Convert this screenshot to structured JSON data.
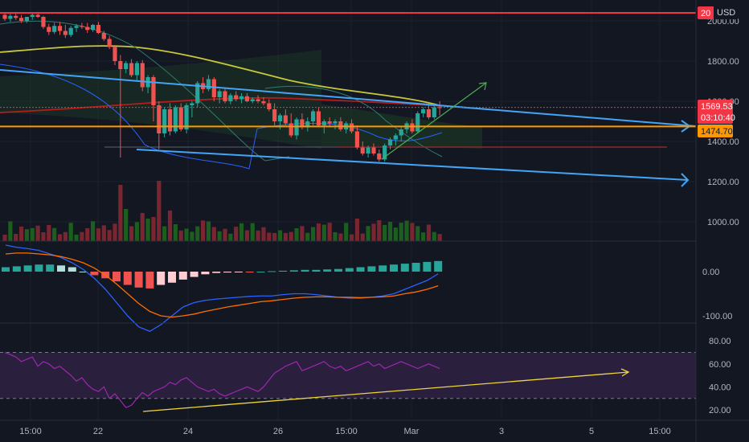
{
  "chart_data": {
    "type": "candlestick",
    "currency": "USD",
    "price_axis_ticks": [
      "2000.00",
      "1800.00",
      "1600.00",
      "1400.00",
      "1200.00",
      "1000.00"
    ],
    "macd_axis_ticks": [
      "0.00",
      "-100.00"
    ],
    "rsi_axis_ticks": [
      "80.00",
      "60.00",
      "40.00",
      "20.00"
    ],
    "x_ticks": [
      "15:00",
      "22",
      "24",
      "26",
      "15:00",
      "Mar",
      "3",
      "5",
      "15:00"
    ],
    "price_tags": [
      {
        "label": "20",
        "value": 2040,
        "color": "#f23645"
      },
      {
        "label": "1569.53",
        "value": 1569.53,
        "color": "#f23645"
      },
      {
        "label": "03:10:40",
        "value": 1535,
        "color": "#f23645"
      },
      {
        "label": "1474.70",
        "value": 1474.7,
        "color": "#ff9800"
      }
    ],
    "horizontal_levels": [
      {
        "value": 2040,
        "color": "#f23645"
      },
      {
        "value": 1474.7,
        "color": "#ff9800"
      }
    ],
    "candles": [
      [
        2030,
        2040,
        2000,
        2010
      ],
      [
        2010,
        2035,
        1995,
        2025
      ],
      [
        2025,
        2045,
        2005,
        2015
      ],
      [
        2015,
        2030,
        1990,
        2000
      ],
      [
        2000,
        2020,
        1990,
        2020
      ],
      [
        2020,
        2040,
        2005,
        2030
      ],
      [
        2030,
        2045,
        2015,
        2020
      ],
      [
        2020,
        2025,
        1960,
        1970
      ],
      [
        1970,
        1985,
        1930,
        1945
      ],
      [
        1945,
        1990,
        1935,
        1975
      ],
      [
        1975,
        1995,
        1930,
        1950
      ],
      [
        1950,
        1980,
        1915,
        1930
      ],
      [
        1930,
        1975,
        1920,
        1965
      ],
      [
        1965,
        1985,
        1945,
        1975
      ],
      [
        1975,
        1990,
        1960,
        1970
      ],
      [
        1970,
        1990,
        1940,
        1955
      ],
      [
        1955,
        1985,
        1945,
        1980
      ],
      [
        1980,
        1995,
        1935,
        1940
      ],
      [
        1940,
        1950,
        1900,
        1910
      ],
      [
        1910,
        1925,
        1860,
        1870
      ],
      [
        1870,
        1880,
        1780,
        1800
      ],
      [
        1800,
        1830,
        1320,
        1760
      ],
      [
        1760,
        1800,
        1740,
        1790
      ],
      [
        1790,
        1810,
        1720,
        1730
      ],
      [
        1730,
        1800,
        1700,
        1790
      ],
      [
        1790,
        1805,
        1650,
        1670
      ],
      [
        1670,
        1730,
        1640,
        1720
      ],
      [
        1720,
        1730,
        1500,
        1580
      ],
      [
        1580,
        1600,
        1360,
        1440
      ],
      [
        1440,
        1570,
        1420,
        1560
      ],
      [
        1560,
        1590,
        1430,
        1450
      ],
      [
        1450,
        1580,
        1440,
        1570
      ],
      [
        1570,
        1590,
        1450,
        1460
      ],
      [
        1460,
        1590,
        1440,
        1580
      ],
      [
        1580,
        1600,
        1520,
        1590
      ],
      [
        1590,
        1700,
        1570,
        1690
      ],
      [
        1690,
        1720,
        1640,
        1660
      ],
      [
        1660,
        1730,
        1650,
        1710
      ],
      [
        1710,
        1720,
        1600,
        1620
      ],
      [
        1620,
        1660,
        1590,
        1650
      ],
      [
        1650,
        1670,
        1590,
        1600
      ],
      [
        1600,
        1640,
        1585,
        1630
      ],
      [
        1630,
        1650,
        1600,
        1610
      ],
      [
        1610,
        1640,
        1590,
        1625
      ],
      [
        1625,
        1640,
        1595,
        1600
      ],
      [
        1600,
        1620,
        1590,
        1610
      ],
      [
        1610,
        1630,
        1590,
        1600
      ],
      [
        1600,
        1620,
        1580,
        1590
      ],
      [
        1590,
        1610,
        1550,
        1560
      ],
      [
        1560,
        1590,
        1480,
        1500
      ],
      [
        1500,
        1540,
        1460,
        1530
      ],
      [
        1530,
        1560,
        1480,
        1490
      ],
      [
        1490,
        1540,
        1420,
        1430
      ],
      [
        1430,
        1520,
        1410,
        1510
      ],
      [
        1510,
        1540,
        1460,
        1470
      ],
      [
        1470,
        1520,
        1450,
        1500
      ],
      [
        1500,
        1560,
        1480,
        1550
      ],
      [
        1550,
        1570,
        1470,
        1480
      ],
      [
        1480,
        1510,
        1440,
        1500
      ],
      [
        1500,
        1520,
        1470,
        1490
      ],
      [
        1490,
        1510,
        1460,
        1500
      ],
      [
        1500,
        1520,
        1450,
        1460
      ],
      [
        1460,
        1500,
        1440,
        1490
      ],
      [
        1490,
        1510,
        1440,
        1450
      ],
      [
        1450,
        1480,
        1360,
        1370
      ],
      [
        1370,
        1400,
        1330,
        1340
      ],
      [
        1340,
        1380,
        1320,
        1370
      ],
      [
        1370,
        1390,
        1330,
        1340
      ],
      [
        1340,
        1360,
        1300,
        1310
      ],
      [
        1310,
        1390,
        1300,
        1380
      ],
      [
        1380,
        1420,
        1360,
        1410
      ],
      [
        1410,
        1440,
        1380,
        1430
      ],
      [
        1430,
        1470,
        1400,
        1460
      ],
      [
        1460,
        1500,
        1440,
        1490
      ],
      [
        1490,
        1510,
        1440,
        1450
      ],
      [
        1450,
        1550,
        1440,
        1540
      ],
      [
        1540,
        1570,
        1520,
        1560
      ],
      [
        1560,
        1590,
        1510,
        1520
      ],
      [
        1520,
        1580,
        1510,
        1570
      ],
      [
        1570,
        1600,
        1530,
        1569.53
      ]
    ],
    "volume_colors_note": "green=up, red=down",
    "macd": {
      "macd_line": [
        60,
        55,
        52,
        48,
        40,
        32,
        20,
        5,
        -15,
        -40,
        -70,
        -100,
        -125,
        -135,
        -120,
        -100,
        -80,
        -70,
        -65,
        -62,
        -60,
        -58,
        -56,
        -55,
        -55,
        -52,
        -50,
        -50,
        -52,
        -55,
        -58,
        -60,
        -60,
        -58,
        -55,
        -50,
        -40,
        -30,
        -20,
        -5
      ],
      "signal_line": [
        40,
        42,
        42,
        40,
        38,
        34,
        28,
        20,
        8,
        -8,
        -28,
        -50,
        -72,
        -90,
        -100,
        -103,
        -100,
        -96,
        -90,
        -85,
        -80,
        -76,
        -72,
        -68,
        -66,
        -63,
        -60,
        -58,
        -57,
        -57,
        -58,
        -58,
        -59,
        -58,
        -57,
        -55,
        -50,
        -46,
        -40,
        -32
      ],
      "histogram": [
        10,
        12,
        14,
        16,
        16,
        14,
        10,
        0,
        -8,
        -15,
        -22,
        -30,
        -36,
        -38,
        -30,
        -25,
        -18,
        -12,
        -6,
        -3,
        -2,
        -1,
        -1,
        0,
        1,
        2,
        3,
        4,
        4,
        5,
        6,
        8,
        10,
        12,
        14,
        16,
        18,
        20,
        22,
        24
      ]
    },
    "rsi": {
      "values": [
        70,
        68,
        66,
        62,
        64,
        66,
        58,
        62,
        60,
        56,
        58,
        54,
        50,
        45,
        48,
        42,
        38,
        36,
        40,
        30,
        34,
        28,
        22,
        24,
        30,
        35,
        32,
        36,
        38,
        40,
        44,
        42,
        46,
        48,
        44,
        40,
        38,
        36,
        38,
        34,
        32,
        34,
        36,
        38,
        40,
        38,
        36,
        40,
        46,
        52,
        55,
        58,
        60,
        62,
        54,
        56,
        58,
        60,
        62,
        58,
        56,
        58,
        54,
        56,
        58,
        60,
        62,
        58,
        60,
        56,
        58,
        60,
        62,
        60,
        58,
        56,
        58,
        60,
        58,
        56
      ],
      "upper": 70,
      "lower": 30
    }
  }
}
